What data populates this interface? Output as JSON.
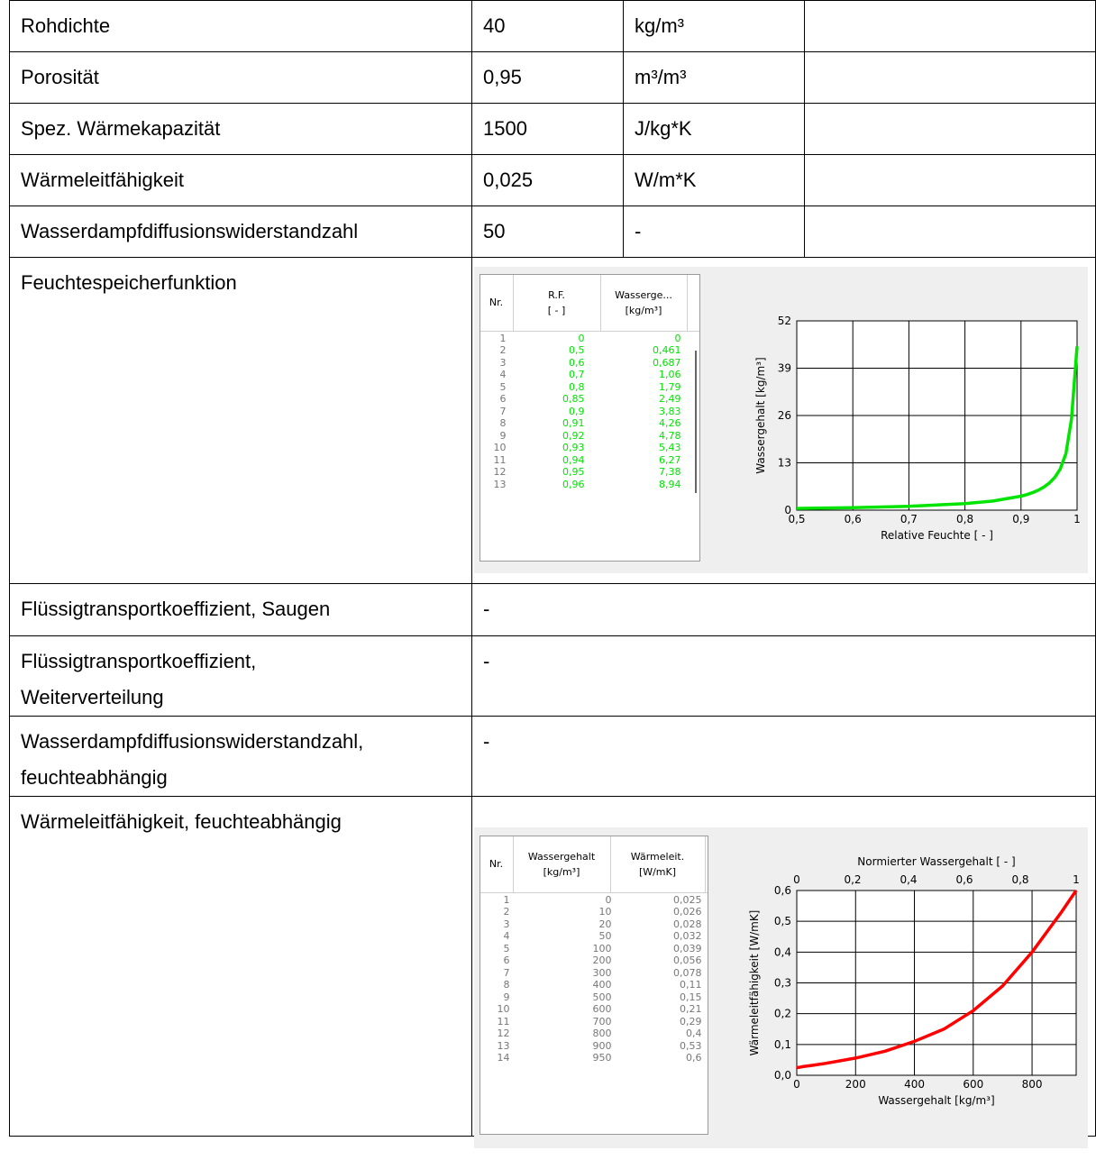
{
  "rows": {
    "r1": {
      "label": "Rohdichte",
      "value": "40",
      "unit": "kg/m³"
    },
    "r2": {
      "label": "Porosität",
      "value": "0,95",
      "unit": "m³/m³"
    },
    "r3": {
      "label": "Spez. Wärmekapazität",
      "value": "1500",
      "unit": "J/kg*K"
    },
    "r4": {
      "label": "Wärmeleitfähigkeit",
      "value": "0,025",
      "unit": "W/m*K"
    },
    "r5": {
      "label": "Wasserdampfdiffusionswiderstandzahl",
      "value": "50",
      "unit": "-"
    },
    "r6": {
      "label": "Feuchtespeicherfunktion"
    },
    "r7": {
      "label": "Flüssigtransportkoeffizient, Saugen",
      "value": "-"
    },
    "r8": {
      "label_line1": "Flüssigtransportkoeffizient,",
      "label_line2": "Weiterverteilung",
      "value": "-"
    },
    "r9": {
      "label_line1": "Wasserdampfdiffusionswiderstandzahl,",
      "label_line2": "feuchteabhängig",
      "value": "-"
    },
    "r10": {
      "label": "Wärmeleitfähigkeit, feuchteabhängig"
    }
  },
  "table1": {
    "headers": {
      "nr": "Nr.",
      "rf_1": "R.F.",
      "rf_2": "[ - ]",
      "w_1": "Wasserge...",
      "w_2": "[kg/m³]"
    },
    "rows": [
      [
        "1",
        "0",
        "0"
      ],
      [
        "2",
        "0,5",
        "0,461"
      ],
      [
        "3",
        "0,6",
        "0,687"
      ],
      [
        "4",
        "0,7",
        "1,06"
      ],
      [
        "5",
        "0,8",
        "1,79"
      ],
      [
        "6",
        "0,85",
        "2,49"
      ],
      [
        "7",
        "0,9",
        "3,83"
      ],
      [
        "8",
        "0,91",
        "4,26"
      ],
      [
        "9",
        "0,92",
        "4,78"
      ],
      [
        "10",
        "0,93",
        "5,43"
      ],
      [
        "11",
        "0,94",
        "6,27"
      ],
      [
        "12",
        "0,95",
        "7,38"
      ],
      [
        "13",
        "0,96",
        "8,94"
      ]
    ]
  },
  "table2": {
    "headers": {
      "nr": "Nr.",
      "w_1": "Wassergehalt",
      "w_2": "[kg/m³]",
      "l_1": "Wärmeleit.",
      "l_2": "[W/mK]"
    },
    "rows": [
      [
        "1",
        "0",
        "0,025"
      ],
      [
        "2",
        "10",
        "0,026"
      ],
      [
        "3",
        "20",
        "0,028"
      ],
      [
        "4",
        "50",
        "0,032"
      ],
      [
        "5",
        "100",
        "0,039"
      ],
      [
        "6",
        "200",
        "0,056"
      ],
      [
        "7",
        "300",
        "0,078"
      ],
      [
        "8",
        "400",
        "0,11"
      ],
      [
        "9",
        "500",
        "0,15"
      ],
      [
        "10",
        "600",
        "0,21"
      ],
      [
        "11",
        "700",
        "0,29"
      ],
      [
        "12",
        "800",
        "0,4"
      ],
      [
        "13",
        "900",
        "0,53"
      ],
      [
        "14",
        "950",
        "0,6"
      ]
    ]
  },
  "chart_data": [
    {
      "type": "line",
      "xlabel": "Relative Feuchte [ - ]",
      "ylabel": "Wassergehalt [kg/m³]",
      "xlim": [
        0.5,
        1.0
      ],
      "ylim": [
        0,
        52
      ],
      "xticks": [
        "0,5",
        "0,6",
        "0,7",
        "0,8",
        "0,9",
        "1"
      ],
      "yticks": [
        "0",
        "13",
        "26",
        "39",
        "52"
      ],
      "color": "#00e400",
      "x": [
        0.5,
        0.6,
        0.7,
        0.8,
        0.85,
        0.9,
        0.91,
        0.92,
        0.93,
        0.94,
        0.95,
        0.96,
        0.97,
        0.98,
        0.99,
        1.0
      ],
      "y": [
        0.461,
        0.687,
        1.06,
        1.79,
        2.49,
        3.83,
        4.26,
        4.78,
        5.43,
        6.27,
        7.38,
        8.94,
        11.3,
        15.5,
        25,
        45
      ]
    },
    {
      "type": "line",
      "title": "Normierter Wassergehalt [ - ]",
      "xlabel": "Wassergehalt [kg/m³]",
      "ylabel": "Wärmeleitfähigkeit [W/mK]",
      "xlim": [
        0,
        950
      ],
      "ylim": [
        0,
        0.6
      ],
      "xticks": [
        "0",
        "200",
        "400",
        "600",
        "800"
      ],
      "top_ticks": [
        "0",
        "0,2",
        "0,4",
        "0,6",
        "0,8",
        "1"
      ],
      "yticks": [
        "0,0",
        "0,1",
        "0,2",
        "0,3",
        "0,4",
        "0,5",
        "0,6"
      ],
      "color": "#ff0000",
      "x": [
        0,
        10,
        20,
        50,
        100,
        200,
        300,
        400,
        500,
        600,
        700,
        800,
        900,
        950
      ],
      "y": [
        0.025,
        0.026,
        0.028,
        0.032,
        0.039,
        0.056,
        0.078,
        0.11,
        0.15,
        0.21,
        0.29,
        0.4,
        0.53,
        0.6
      ]
    }
  ]
}
